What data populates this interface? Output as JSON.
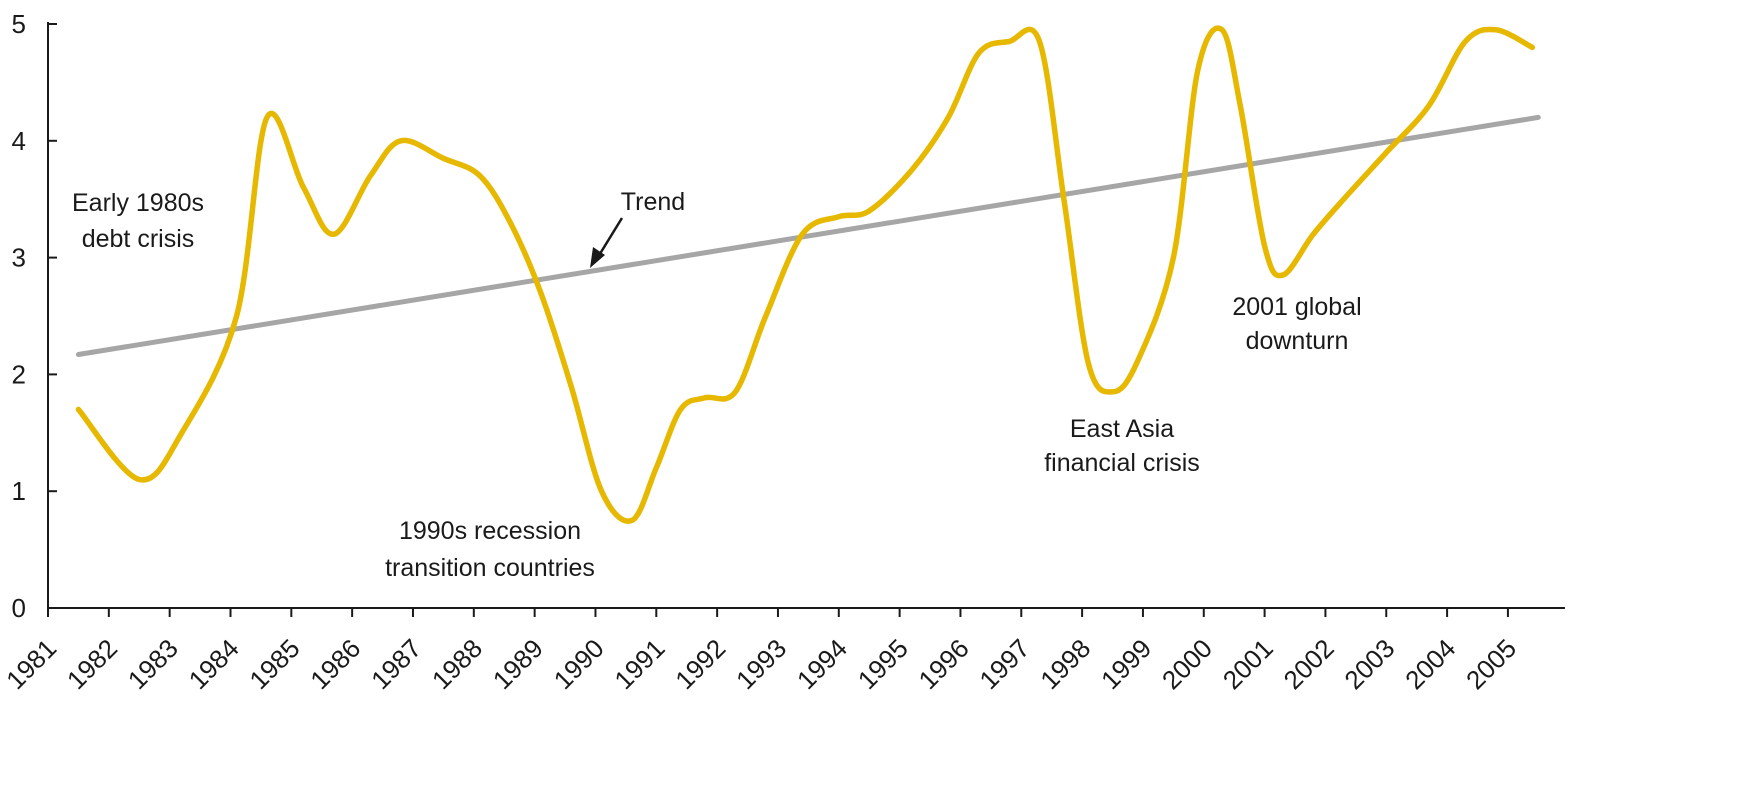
{
  "chart_data": {
    "type": "line",
    "title": "",
    "xlabel": "",
    "ylabel": "",
    "ylim": [
      0,
      5
    ],
    "yticks": [
      0,
      1,
      2,
      3,
      4,
      5
    ],
    "xticks": [
      "1981",
      "1982",
      "1983",
      "1984",
      "1985",
      "1986",
      "1987",
      "1988",
      "1989",
      "1990",
      "1991",
      "1992",
      "1993",
      "1994",
      "1995",
      "1996",
      "1997",
      "1998",
      "1999",
      "2000",
      "2001",
      "2002",
      "2003",
      "2004",
      "2005"
    ],
    "grid": false,
    "legend": "none",
    "series": [
      {
        "color": "#e6b800",
        "x": [
          1981.5,
          1982.5,
          1983.2,
          1984.1,
          1984.6,
          1985.2,
          1985.7,
          1986.3,
          1986.8,
          1987.5,
          1988.1,
          1988.6,
          1989.1,
          1989.6,
          1990.1,
          1990.6,
          1991.0,
          1991.4,
          1991.8,
          1992.3,
          1992.8,
          1993.4,
          1994.0,
          1994.5,
          1995.2,
          1995.8,
          1996.3,
          1996.8,
          1997.3,
          1997.7,
          1998.1,
          1998.5,
          1998.9,
          1999.5,
          1999.9,
          2000.3,
          2000.6,
          2001.0,
          2001.3,
          2001.8,
          2002.3,
          2003.0,
          2003.7,
          2004.3,
          2004.8,
          2005.4
        ],
        "y": [
          1.7,
          1.1,
          1.5,
          2.5,
          4.2,
          3.6,
          3.2,
          3.7,
          4.0,
          3.85,
          3.7,
          3.3,
          2.7,
          1.9,
          1.0,
          0.75,
          1.2,
          1.7,
          1.8,
          1.85,
          2.5,
          3.2,
          3.35,
          3.4,
          3.75,
          4.2,
          4.75,
          4.85,
          4.85,
          3.5,
          2.1,
          1.85,
          2.1,
          3.0,
          4.6,
          4.95,
          4.3,
          3.1,
          2.85,
          3.2,
          3.5,
          3.9,
          4.3,
          4.85,
          4.95,
          4.8
        ]
      },
      {
        "name": "Trend",
        "color": "#a6a6a6",
        "x": [
          1981.5,
          2005.5
        ],
        "y": [
          2.17,
          4.2
        ]
      }
    ],
    "annotations": [
      {
        "lines": [
          "Early 1980s",
          "debt crisis"
        ]
      },
      {
        "lines": [
          "1990s recession",
          "transition countries"
        ]
      },
      {
        "lines": [
          "East Asia",
          "financial crisis"
        ]
      },
      {
        "lines": [
          "2001 global",
          "downturn"
        ]
      },
      {
        "lines": [
          "Trend"
        ]
      }
    ]
  }
}
